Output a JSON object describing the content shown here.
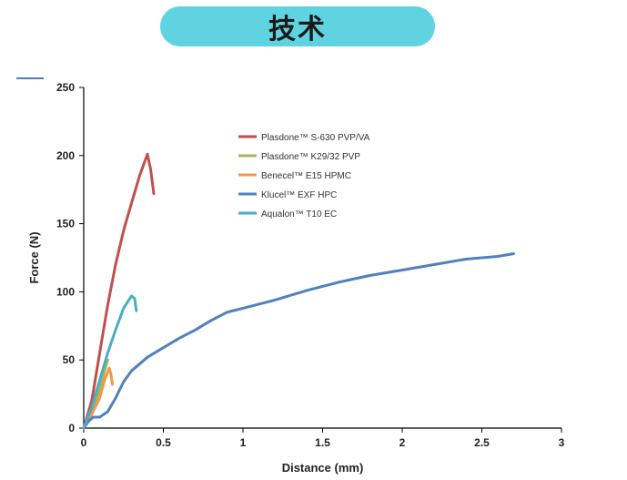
{
  "header": {
    "title": "技术"
  },
  "chart_data": {
    "type": "line",
    "title": "",
    "xlabel": "Distance (mm)",
    "ylabel": "Force (N)",
    "xlim": [
      0,
      3
    ],
    "ylim": [
      0,
      250
    ],
    "xticks": [
      0,
      0.5,
      1,
      1.5,
      2,
      2.5,
      3
    ],
    "xtick_labels": [
      "0",
      "0.5",
      "1",
      "1.5",
      "2",
      "2.5",
      "3"
    ],
    "yticks": [
      0,
      50,
      100,
      150,
      200,
      250
    ],
    "ytick_labels": [
      "0",
      "50",
      "100",
      "150",
      "200",
      "250"
    ],
    "grid": false,
    "legend": "top-center",
    "series": [
      {
        "name": "Plasdone™ S-630 PVP/VA",
        "color": "#c0504d",
        "points": [
          [
            0,
            0
          ],
          [
            0.05,
            20
          ],
          [
            0.1,
            55
          ],
          [
            0.15,
            90
          ],
          [
            0.2,
            120
          ],
          [
            0.25,
            145
          ],
          [
            0.3,
            165
          ],
          [
            0.35,
            185
          ],
          [
            0.4,
            201
          ],
          [
            0.42,
            190
          ],
          [
            0.44,
            172
          ]
        ]
      },
      {
        "name": "Plasdone™ K29/32 PVP",
        "color": "#9bbb59",
        "points": [
          [
            0,
            0
          ],
          [
            0.05,
            12
          ],
          [
            0.1,
            28
          ],
          [
            0.13,
            42
          ],
          [
            0.15,
            50
          ]
        ]
      },
      {
        "name": "Benecel™ E15 HPMC",
        "color": "#f79646",
        "points": [
          [
            0,
            0
          ],
          [
            0.05,
            10
          ],
          [
            0.1,
            22
          ],
          [
            0.13,
            35
          ],
          [
            0.16,
            44
          ],
          [
            0.17,
            40
          ],
          [
            0.18,
            32
          ]
        ]
      },
      {
        "name": "Klucel™ EXF HPC",
        "color": "#4f81bd",
        "points": [
          [
            0,
            0
          ],
          [
            0.03,
            5
          ],
          [
            0.06,
            8
          ],
          [
            0.1,
            8
          ],
          [
            0.15,
            12
          ],
          [
            0.2,
            22
          ],
          [
            0.25,
            34
          ],
          [
            0.3,
            42
          ],
          [
            0.4,
            52
          ],
          [
            0.5,
            59
          ],
          [
            0.6,
            66
          ],
          [
            0.7,
            72
          ],
          [
            0.8,
            79
          ],
          [
            0.9,
            85
          ],
          [
            1.0,
            88
          ],
          [
            1.1,
            91
          ],
          [
            1.2,
            94
          ],
          [
            1.4,
            101
          ],
          [
            1.6,
            107
          ],
          [
            1.8,
            112
          ],
          [
            2.0,
            116
          ],
          [
            2.2,
            120
          ],
          [
            2.4,
            124
          ],
          [
            2.6,
            126
          ],
          [
            2.7,
            128
          ]
        ]
      },
      {
        "name": "Aqualon™ T10 EC",
        "color": "#4bacc6",
        "points": [
          [
            0,
            0
          ],
          [
            0.05,
            15
          ],
          [
            0.1,
            35
          ],
          [
            0.15,
            55
          ],
          [
            0.2,
            72
          ],
          [
            0.25,
            88
          ],
          [
            0.3,
            97
          ],
          [
            0.32,
            95
          ],
          [
            0.33,
            86
          ]
        ]
      }
    ]
  }
}
